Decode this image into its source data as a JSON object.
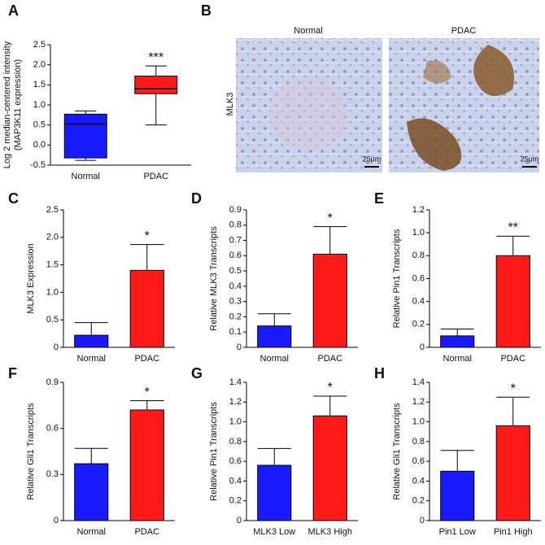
{
  "chart_data": [
    {
      "type": "box",
      "panel": "A",
      "categories": [
        "Normal",
        "PDAC"
      ],
      "colors": [
        "#1a1aff",
        "#ff1a1a"
      ],
      "boxes": [
        {
          "min": -0.38,
          "q1": -0.32,
          "median": 0.52,
          "q3": 0.77,
          "max": 0.85
        },
        {
          "min": 0.5,
          "q1": 1.28,
          "median": 1.4,
          "q3": 1.72,
          "max": 1.97
        }
      ],
      "ylabel": [
        "Log 2 median-centered intensity",
        "(MAP3K11 expression)"
      ],
      "ylim": [
        -0.5,
        2.5
      ],
      "yticks": [
        -0.5,
        {
          "value": 0,
          "label": "0.0"
        },
        0.5,
        {
          "value": 1,
          "label": "1.0"
        },
        1.5,
        {
          "value": 2,
          "label": "2.0"
        },
        2.5
      ],
      "annotation": "***"
    },
    {
      "type": "bar",
      "panel": "C",
      "categories": [
        "Normal",
        "PDAC"
      ],
      "colors": [
        "#1a1aff",
        "#ff1a1a"
      ],
      "values": [
        0.22,
        1.4
      ],
      "errors": [
        0.23,
        0.47
      ],
      "ylabel": [
        "MLK3 Expression"
      ],
      "ylim": [
        0,
        2.5
      ],
      "yticks": [
        0,
        0.5,
        {
          "value": 1,
          "label": "1.0"
        },
        1.5,
        {
          "value": 2,
          "label": "2.0"
        },
        2.5
      ],
      "annotation": "*"
    },
    {
      "type": "bar",
      "panel": "D",
      "categories": [
        "Normal",
        "PDAC"
      ],
      "colors": [
        "#1a1aff",
        "#ff1a1a"
      ],
      "values": [
        0.14,
        0.61
      ],
      "errors": [
        0.08,
        0.18
      ],
      "ylabel": [
        "Relative MLK3 Transcripts"
      ],
      "ylim": [
        0,
        0.9
      ],
      "yticks": [
        0,
        0.1,
        0.2,
        0.3,
        0.4,
        0.5,
        0.6,
        0.7,
        0.8,
        0.9
      ],
      "annotation": "*"
    },
    {
      "type": "bar",
      "panel": "E",
      "categories": [
        "Normal",
        "PDAC"
      ],
      "colors": [
        "#1a1aff",
        "#ff1a1a"
      ],
      "values": [
        0.1,
        0.8
      ],
      "errors": [
        0.06,
        0.17
      ],
      "ylabel": [
        "Relative Pin1 Transcripts"
      ],
      "ylim": [
        0,
        1.2
      ],
      "yticks": [
        0,
        0.2,
        0.4,
        0.6,
        0.8,
        {
          "value": 1,
          "label": "1.0"
        },
        1.2
      ],
      "annotation": "**"
    },
    {
      "type": "bar",
      "panel": "F",
      "categories": [
        "Normal",
        "PDAC"
      ],
      "colors": [
        "#1a1aff",
        "#ff1a1a"
      ],
      "values": [
        0.37,
        0.72
      ],
      "errors": [
        0.1,
        0.06
      ],
      "ylabel": [
        "Relative Gli1 Transcripts"
      ],
      "ylim": [
        0,
        0.9
      ],
      "yticks": [
        0,
        0.3,
        0.6,
        0.9
      ],
      "annotation": "*"
    },
    {
      "type": "bar",
      "panel": "G",
      "categories": [
        "MLK3 Low",
        "MLK3 High"
      ],
      "colors": [
        "#1a1aff",
        "#ff1a1a"
      ],
      "values": [
        0.56,
        1.06
      ],
      "errors": [
        0.17,
        0.2
      ],
      "ylabel": [
        "Relative Pin1 Transcripts"
      ],
      "ylim": [
        0,
        1.4
      ],
      "yticks": [
        0,
        0.2,
        0.4,
        0.6,
        0.8,
        {
          "value": 1,
          "label": "1.0"
        },
        1.2,
        1.4
      ],
      "annotation": "*"
    },
    {
      "type": "bar",
      "panel": "H",
      "categories": [
        "Pin1 Low",
        "Pin1 High"
      ],
      "colors": [
        "#1a1aff",
        "#ff1a1a"
      ],
      "values": [
        0.5,
        0.96
      ],
      "errors": [
        0.21,
        0.29
      ],
      "ylabel": [
        "Relative Gli1 Transcripts"
      ],
      "ylim": [
        0,
        1.4
      ],
      "yticks": [
        0,
        0.2,
        0.4,
        0.6,
        0.8,
        {
          "value": 1,
          "label": "1.0"
        },
        1.2,
        1.4
      ],
      "annotation": "*"
    }
  ],
  "image_panel": {
    "panel": "B",
    "row_label": "MLK3",
    "columns": [
      "Normal",
      "PDAC"
    ],
    "scale_bars": [
      "25μm",
      "25μm"
    ]
  }
}
